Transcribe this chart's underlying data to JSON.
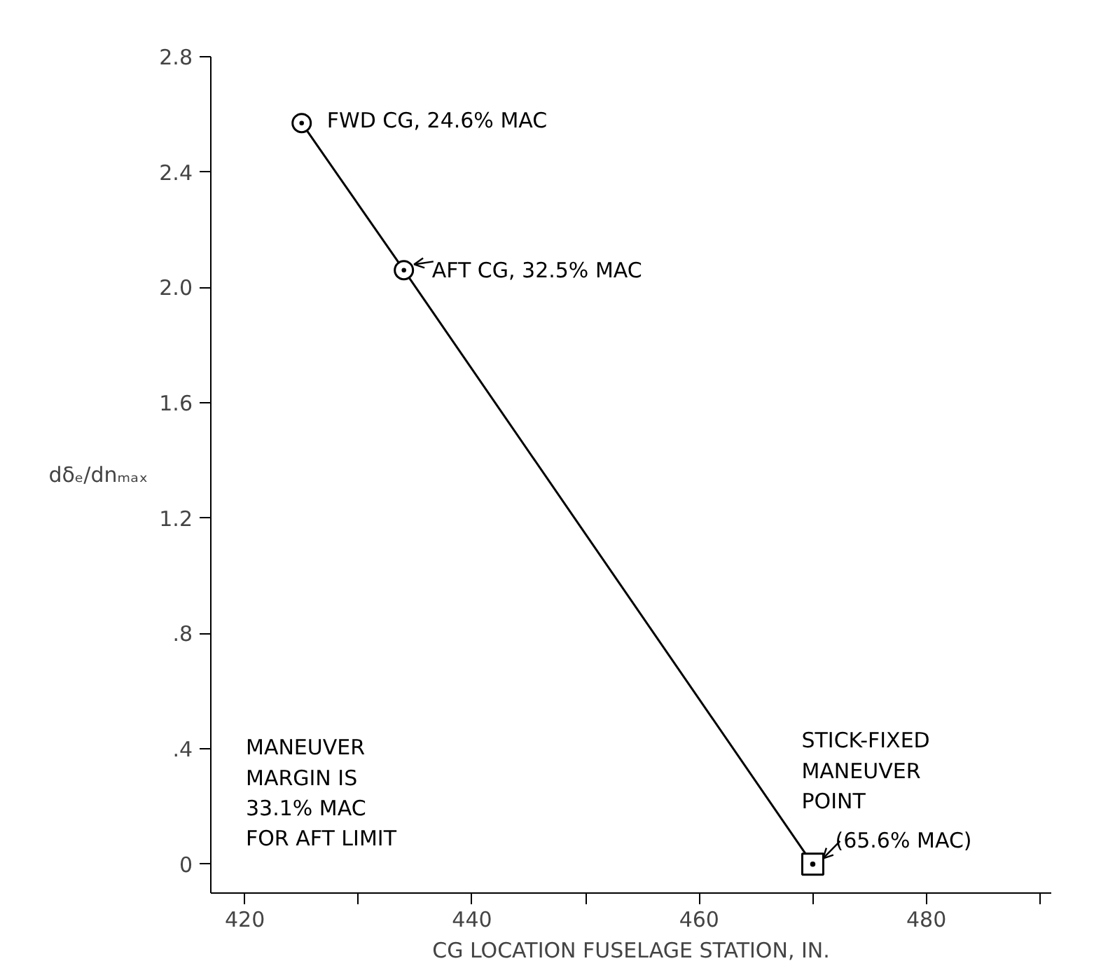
{
  "chart_data": {
    "type": "line",
    "xlabel": "CG LOCATION FUSELAGE STATION, IN.",
    "ylabel": "dδₑ/dnₘₐₓ",
    "xlim": [
      417,
      491
    ],
    "ylim": [
      -0.1,
      2.8
    ],
    "xticks": [
      420,
      440,
      460,
      480,
      {
        "value": 430,
        "label": null
      },
      {
        "value": 450,
        "label": null
      },
      {
        "value": 470,
        "label": null
      },
      {
        "value": 490,
        "label": null
      }
    ],
    "yticks": [
      {
        "value": 0,
        "label": "0"
      },
      {
        "value": 0.4,
        "label": ".4"
      },
      {
        "value": 0.8,
        "label": ".8"
      },
      {
        "value": 1.2,
        "label": "1.2"
      },
      {
        "value": 1.6,
        "label": "1.6"
      },
      {
        "value": 2.0,
        "label": "2.0"
      },
      {
        "value": 2.4,
        "label": "2.4"
      },
      {
        "value": 2.8,
        "label": "2.8"
      }
    ],
    "grid": false,
    "line_style": "solid",
    "series": [
      {
        "color": "#000000",
        "x": [
          425,
          434,
          470
        ],
        "values": [
          2.57,
          2.06,
          0
        ],
        "marker": "circle"
      },
      {
        "type": "scatter",
        "color": "#000000",
        "x": [
          470
        ],
        "values": [
          0
        ],
        "marker": "square"
      }
    ],
    "annotations": [
      {
        "text": "FWD CG, 24.6% MAC",
        "x": 425,
        "y": 2.57
      },
      {
        "text": "AFT CG, 32.5% MAC",
        "x": 434,
        "y": 2.06
      },
      {
        "text": "STICK-FIXED\nMANEUVER\nPOINT",
        "x": 470,
        "y": 0
      },
      {
        "text": "(65.6% MAC)",
        "x": 470,
        "y": 0
      },
      "MANEUVER\nMARGIN IS\n33.1% MAC\nFOR AFT LIMIT"
    ]
  }
}
